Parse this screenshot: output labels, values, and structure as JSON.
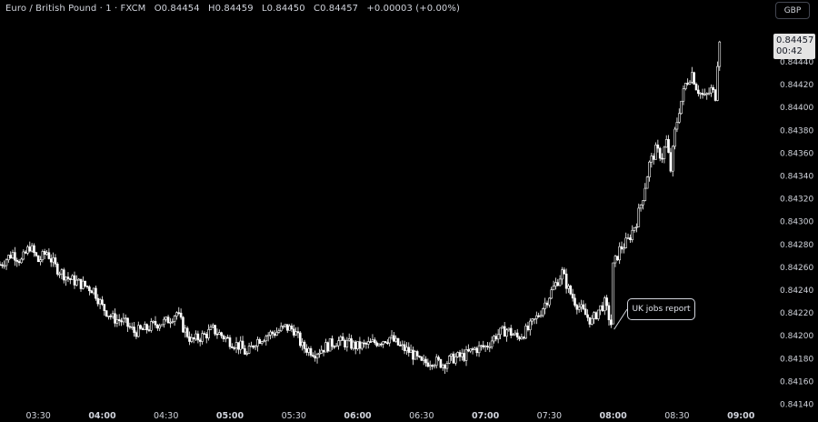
{
  "legend": {
    "symbol": "Euro / British Pound · 1 · FXCM",
    "open": "O0.84454",
    "high": "H0.84459",
    "low": "L0.84450",
    "close": "C0.84457",
    "change": "+0.00003 (+0.00%)"
  },
  "currency_button": "GBP",
  "last_price": {
    "price": "0.84457",
    "countdown": "00:42"
  },
  "annotation": {
    "text": "UK jobs report",
    "time": "08:00",
    "price": 0.8421
  },
  "colors": {
    "background": "#000000",
    "candle": "#ffffff",
    "axis_text": "#d1d4dc"
  },
  "chart_data": {
    "type": "candlestick",
    "title": "Euro / British Pound · 1 · FXCM",
    "xlabel": "",
    "ylabel": "",
    "x_ticks": [
      {
        "label": "03:30",
        "bold": false
      },
      {
        "label": "04:00",
        "bold": true
      },
      {
        "label": "04:30",
        "bold": false
      },
      {
        "label": "05:00",
        "bold": true
      },
      {
        "label": "05:30",
        "bold": false
      },
      {
        "label": "06:00",
        "bold": true
      },
      {
        "label": "06:30",
        "bold": false
      },
      {
        "label": "07:00",
        "bold": true
      },
      {
        "label": "07:30",
        "bold": false
      },
      {
        "label": "08:00",
        "bold": true
      },
      {
        "label": "08:30",
        "bold": false
      },
      {
        "label": "09:00",
        "bold": true
      }
    ],
    "y_ticks": [
      "0.84440",
      "0.84420",
      "0.84400",
      "0.84380",
      "0.84360",
      "0.84340",
      "0.84320",
      "0.84300",
      "0.84280",
      "0.84260",
      "0.84240",
      "0.84220",
      "0.84200",
      "0.84180",
      "0.84160",
      "0.84140"
    ],
    "ylim": [
      0.8414,
      0.8446
    ],
    "xlim": [
      "03:12",
      "09:14"
    ],
    "grid": false,
    "path": [
      [
        "03:12",
        0.84262
      ],
      [
        "03:18",
        0.84272
      ],
      [
        "03:22",
        0.84265
      ],
      [
        "03:26",
        0.84278
      ],
      [
        "03:30",
        0.84265
      ],
      [
        "03:34",
        0.84273
      ],
      [
        "03:38",
        0.8426
      ],
      [
        "03:44",
        0.8425
      ],
      [
        "03:50",
        0.84245
      ],
      [
        "03:56",
        0.8424
      ],
      [
        "04:00",
        0.84225
      ],
      [
        "04:05",
        0.84215
      ],
      [
        "04:10",
        0.84212
      ],
      [
        "04:15",
        0.84203
      ],
      [
        "04:20",
        0.84205
      ],
      [
        "04:25",
        0.8421
      ],
      [
        "04:30",
        0.84212
      ],
      [
        "04:35",
        0.8422
      ],
      [
        "04:38",
        0.84207
      ],
      [
        "04:42",
        0.84195
      ],
      [
        "04:48",
        0.842
      ],
      [
        "04:52",
        0.84205
      ],
      [
        "04:56",
        0.842
      ],
      [
        "05:00",
        0.84195
      ],
      [
        "05:05",
        0.8419
      ],
      [
        "05:08",
        0.84183
      ],
      [
        "05:12",
        0.84195
      ],
      [
        "05:17",
        0.842
      ],
      [
        "05:22",
        0.84203
      ],
      [
        "05:26",
        0.84207
      ],
      [
        "05:30",
        0.84205
      ],
      [
        "05:34",
        0.8419
      ],
      [
        "05:40",
        0.84185
      ],
      [
        "05:45",
        0.8419
      ],
      [
        "05:50",
        0.84195
      ],
      [
        "05:55",
        0.84193
      ],
      [
        "06:00",
        0.8419
      ],
      [
        "06:05",
        0.84192
      ],
      [
        "06:10",
        0.84195
      ],
      [
        "06:15",
        0.84198
      ],
      [
        "06:20",
        0.8419
      ],
      [
        "06:25",
        0.84185
      ],
      [
        "06:30",
        0.84175
      ],
      [
        "06:35",
        0.84178
      ],
      [
        "06:40",
        0.84175
      ],
      [
        "06:45",
        0.8418
      ],
      [
        "06:50",
        0.84182
      ],
      [
        "06:55",
        0.84188
      ],
      [
        "07:00",
        0.8419
      ],
      [
        "07:05",
        0.842
      ],
      [
        "07:10",
        0.84205
      ],
      [
        "07:15",
        0.84198
      ],
      [
        "07:20",
        0.84205
      ],
      [
        "07:25",
        0.84218
      ],
      [
        "07:30",
        0.84235
      ],
      [
        "07:33",
        0.84245
      ],
      [
        "07:36",
        0.84255
      ],
      [
        "07:39",
        0.8424
      ],
      [
        "07:42",
        0.8423
      ],
      [
        "07:46",
        0.8422
      ],
      [
        "07:50",
        0.84212
      ],
      [
        "07:53",
        0.84222
      ],
      [
        "07:56",
        0.84228
      ],
      [
        "07:59",
        0.8421
      ],
      [
        "08:00",
        0.8426
      ],
      [
        "08:03",
        0.84275
      ],
      [
        "08:07",
        0.84283
      ],
      [
        "08:11",
        0.843
      ],
      [
        "08:14",
        0.84322
      ],
      [
        "08:17",
        0.8435
      ],
      [
        "08:20",
        0.84362
      ],
      [
        "08:23",
        0.84357
      ],
      [
        "08:25",
        0.8437
      ],
      [
        "08:27",
        0.84345
      ],
      [
        "08:29",
        0.84378
      ],
      [
        "08:31",
        0.84398
      ],
      [
        "08:34",
        0.8442
      ],
      [
        "08:37",
        0.8443
      ],
      [
        "08:39",
        0.84418
      ],
      [
        "08:41",
        0.84412
      ],
      [
        "08:43",
        0.84408
      ],
      [
        "08:46",
        0.84415
      ],
      [
        "08:48",
        0.8441
      ],
      [
        "08:49",
        0.8444
      ],
      [
        "08:50",
        0.84457
      ]
    ]
  }
}
